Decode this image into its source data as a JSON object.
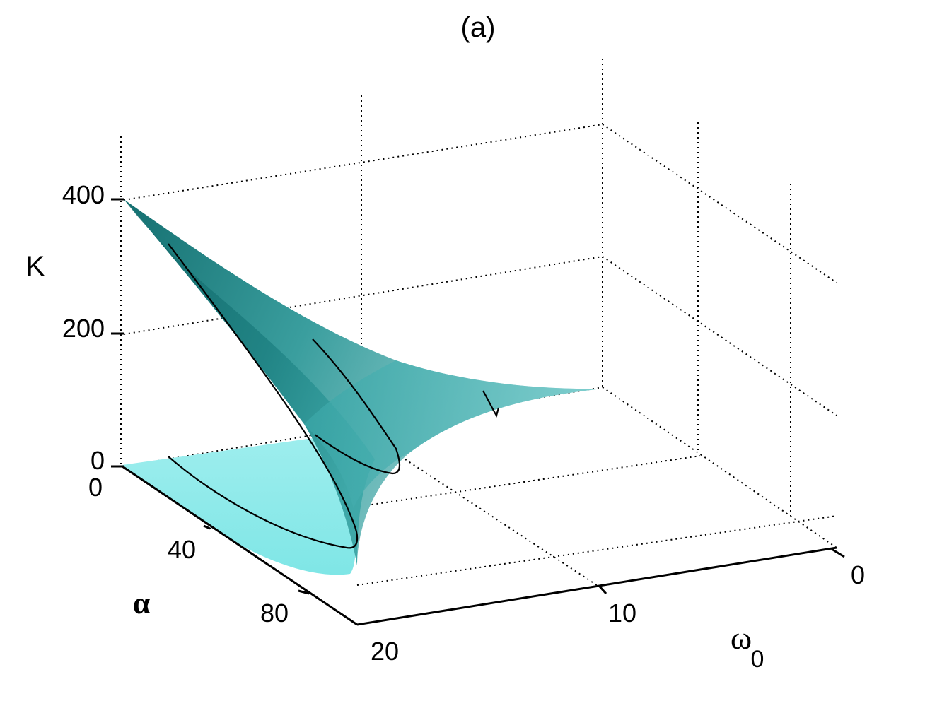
{
  "chart_data": {
    "type": "surface3d",
    "title": "(a)",
    "zlabel": "K",
    "xlabel": "α",
    "ylabel": "ω",
    "ylabel_subscript": "0",
    "xticks": [
      "0",
      "40",
      "80"
    ],
    "yticks": [
      "20",
      "10",
      "0"
    ],
    "zticks": [
      "0",
      "200",
      "400"
    ],
    "xlim": [
      0,
      100
    ],
    "ylim": [
      0,
      20
    ],
    "zlim": [
      0,
      500
    ],
    "grid": true,
    "surface_color_light": "#9ceeee",
    "surface_color_dark": "#177d7d",
    "contour_color": "#000000",
    "approx_surface_points": [
      {
        "alpha": 0,
        "omega0": 20,
        "K": 400
      },
      {
        "alpha": 0,
        "omega0": 0,
        "K": 0
      },
      {
        "alpha": 90,
        "omega0": 20,
        "K": 0
      }
    ]
  }
}
